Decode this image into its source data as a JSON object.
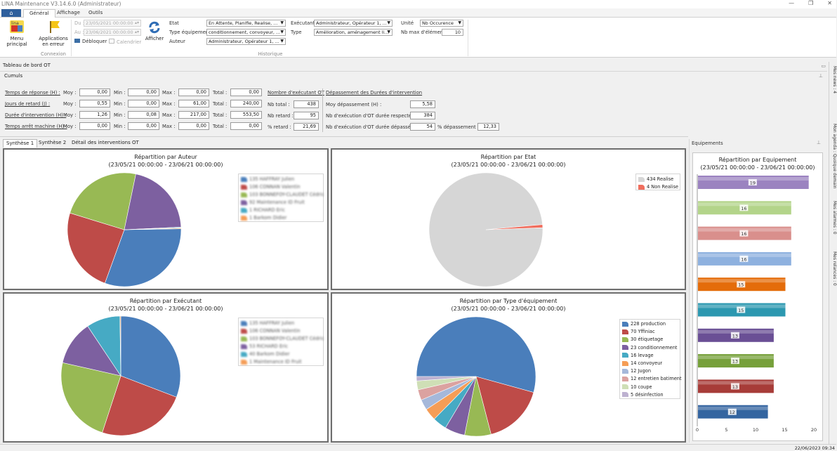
{
  "app": {
    "title": "LINA Maintenance  V3.14.6.0  (Administrateur)"
  },
  "menu_tabs": [
    "Général",
    "Affichage",
    "Outils"
  ],
  "ribbon": {
    "menu_principal": "Menu principal",
    "applications_en_erreur": "Applications en erreur",
    "connexion_group": "Connexion",
    "du_label": "Du :",
    "du_value": "23/05/2021 00:00:00",
    "au_label": "Au :",
    "au_value": "23/06/2021 00:00:00",
    "debloquer": "Débloquer",
    "calendrier": "Calendrier",
    "afficher": "Afficher",
    "etat_label": "Etat",
    "etat_value": "En Attente, Planifie, Realise, ...",
    "type_equipement_label": "Type équipement",
    "type_equipement_value": "conditionnement, convoyeur, ...",
    "auteur_label": "Auteur",
    "auteur_value": "Administrateur, Opérateur 1, ...",
    "executant_label": "Exécutant",
    "executant_value": "Administrateur, Opérateur 1, ...",
    "type_label": "Type",
    "type_value": "Amélioration, aménagement li...",
    "unite_label": "Unité",
    "unite_value": "Nb Occurence",
    "nb_max_label": "Nb max d'éléments",
    "nb_max_value": "10",
    "historique_group": "Historique"
  },
  "doc_title": "Tableau de bord OT",
  "cumuls": {
    "title": "Cumuls",
    "rows": [
      {
        "label": "Temps de réponse (H) :",
        "moy": "0,00",
        "min": "0,00",
        "max": "0,00",
        "total": "0,00"
      },
      {
        "label": "Jours de retard (J) :",
        "moy": "0,55",
        "min": "0,00",
        "max": "61,00",
        "total": "240,00"
      },
      {
        "label": "Durée d'intervention (H) :",
        "moy": "1,26",
        "min": "0,08",
        "max": "217,00",
        "total": "553,50"
      },
      {
        "label": "Temps arrêt machine (H) :",
        "moy": "0,00",
        "min": "0,00",
        "max": "0,00",
        "total": "0,00"
      }
    ],
    "moy_label": "Moy :",
    "min_label": "Min :",
    "max_label": "Max :",
    "total_label": "Total :",
    "nb_executant_title": "Nombre d'exécutant OT",
    "nb_total_label": "Nb total :",
    "nb_total": "438",
    "nb_retard_label": "Nb retard :",
    "nb_retard": "95",
    "pct_retard_label": "% retard :",
    "pct_retard": "21,69",
    "depassement_title": "Dépassement des Durées d'intervention",
    "moy_dep_label": "Moy dépassement (H) :",
    "moy_dep": "5,58",
    "nb_respectee_label": "Nb d'exécution d'OT durée respectée :",
    "nb_respectee": "384",
    "nb_depassee_label": "Nb d'exécution d'OT durée dépassée :",
    "nb_depassee": "54",
    "pct_dep_label": "% dépassement :",
    "pct_dep": "12,33"
  },
  "synth_tabs": [
    "Synthèse 1",
    "Synthèse 2",
    "Détail des interventions OT"
  ],
  "period": "(23/05/21 00:00:00 - 23/06/21 00:00:00)",
  "chart_data": [
    {
      "type": "pie",
      "title": "Répartition par Auteur",
      "categories": [
        "135 HAFFRAY Julien",
        "106 CONNAN Valentin",
        "103 BONNEFOY-CLAUDET Cédric",
        "92 Maintenance ID Fruit",
        "1 RICHARD Eric",
        "1 Barkom Didier"
      ],
      "values": [
        135,
        106,
        103,
        92,
        1,
        1
      ],
      "colors": [
        "#4a7ebb",
        "#be4b48",
        "#98b954",
        "#7d60a0",
        "#46aac4",
        "#f59d56"
      ]
    },
    {
      "type": "pie",
      "title": "Répartition par Etat",
      "categories": [
        "434 Realise",
        "4 Non Realise"
      ],
      "values": [
        434,
        4
      ],
      "colors": [
        "#d6d6d6",
        "#f06e5e"
      ]
    },
    {
      "type": "pie",
      "title": "Répartition par Exécutant",
      "categories": [
        "135 HAFFRAY Julien",
        "106 CONNAN Valentin",
        "103 BONNEFOY-CLAUDET Cédric",
        "53 RICHARD Eric",
        "40 Barkom Didier",
        "1 Maintenance ID Fruit"
      ],
      "values": [
        135,
        106,
        103,
        53,
        40,
        1
      ],
      "colors": [
        "#4a7ebb",
        "#be4b48",
        "#98b954",
        "#7d60a0",
        "#46aac4",
        "#f59d56"
      ]
    },
    {
      "type": "pie",
      "title": "Répartition par Type d'équipement",
      "categories": [
        "228 production",
        "70 Yffiniac",
        "30 étiquetage",
        "23 conditionnement",
        "16 levage",
        "14 convoyeur",
        "12 Jugon",
        "12 entretien batiment",
        "10 coupe",
        "5 désinfection"
      ],
      "values": [
        228,
        70,
        30,
        23,
        16,
        14,
        12,
        12,
        10,
        5
      ],
      "colors": [
        "#4a7ebb",
        "#be4b48",
        "#98b954",
        "#7d60a0",
        "#46aac4",
        "#f59d56",
        "#a5b8da",
        "#dba2a0",
        "#cfdfb6",
        "#bdb1d0"
      ]
    },
    {
      "type": "bar",
      "orientation": "horizontal",
      "title": "Répartition par Equipement",
      "values": [
        19,
        16,
        16,
        16,
        15,
        15,
        13,
        13,
        13,
        12
      ],
      "colors": [
        "#9b83c0",
        "#b3d48a",
        "#d98f8c",
        "#8eb1df",
        "#e46c0a",
        "#2c98b0",
        "#6a4f95",
        "#76a03a",
        "#a73c38",
        "#3465a0"
      ],
      "xlim": [
        0,
        20
      ],
      "xticks": [
        0,
        5,
        10,
        15,
        20
      ]
    }
  ],
  "equip_panel_title": "Equipements",
  "right_tabs": [
    "Mes news : 4",
    "Mon agenda : Quoique demain",
    "Mes alarmes : 0",
    "Mes relances : 0"
  ],
  "status": "22/06/2023 09:34"
}
